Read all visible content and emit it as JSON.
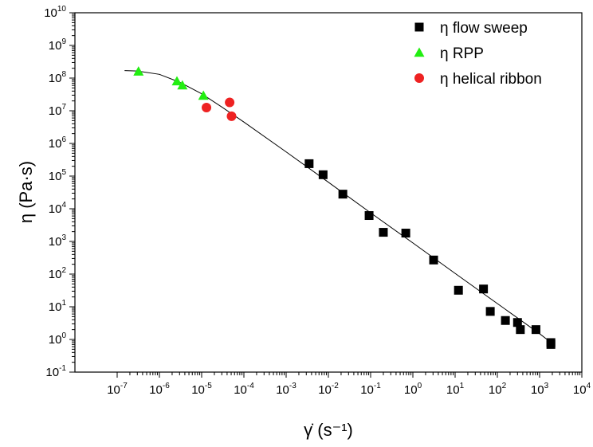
{
  "chart_data": {
    "type": "scatter",
    "xlabel": "γ̇ (s⁻¹)",
    "ylabel": "η (Pa·s)",
    "x_scale": "log",
    "y_scale": "log",
    "xlim": [
      1e-08,
      10000.0
    ],
    "ylim": [
      0.1,
      10000000000.0
    ],
    "x_ticks": [
      {
        "base": "10",
        "exp": "-7",
        "value": 1e-07
      },
      {
        "base": "10",
        "exp": "-6",
        "value": 1e-06
      },
      {
        "base": "10",
        "exp": "-5",
        "value": 1e-05
      },
      {
        "base": "10",
        "exp": "-4",
        "value": 0.0001
      },
      {
        "base": "10",
        "exp": "-3",
        "value": 0.001
      },
      {
        "base": "10",
        "exp": "-2",
        "value": 0.01
      },
      {
        "base": "10",
        "exp": "-1",
        "value": 0.1
      },
      {
        "base": "10",
        "exp": "0",
        "value": 1
      },
      {
        "base": "10",
        "exp": "1",
        "value": 10
      },
      {
        "base": "10",
        "exp": "2",
        "value": 100
      },
      {
        "base": "10",
        "exp": "3",
        "value": 1000
      },
      {
        "base": "10",
        "exp": "4",
        "value": 10000
      }
    ],
    "y_ticks": [
      {
        "base": "10",
        "exp": "-1",
        "value": 0.1
      },
      {
        "base": "10",
        "exp": "0",
        "value": 1
      },
      {
        "base": "10",
        "exp": "1",
        "value": 10
      },
      {
        "base": "10",
        "exp": "2",
        "value": 100
      },
      {
        "base": "10",
        "exp": "3",
        "value": 1000
      },
      {
        "base": "10",
        "exp": "4",
        "value": 10000
      },
      {
        "base": "10",
        "exp": "5",
        "value": 100000
      },
      {
        "base": "10",
        "exp": "6",
        "value": 1000000
      },
      {
        "base": "10",
        "exp": "7",
        "value": 10000000
      },
      {
        "base": "10",
        "exp": "8",
        "value": 100000000
      },
      {
        "base": "10",
        "exp": "9",
        "value": 1000000000
      },
      {
        "base": "10",
        "exp": "10",
        "value": 10000000000
      }
    ],
    "grid": false,
    "legend_position": "top-right",
    "series": [
      {
        "name": "η flow sweep",
        "marker": "square",
        "color": "#000000",
        "points": [
          {
            "x": 0.0035,
            "y": 240000
          },
          {
            "x": 0.0075,
            "y": 110000
          },
          {
            "x": 0.022,
            "y": 28000
          },
          {
            "x": 0.092,
            "y": 6200
          },
          {
            "x": 0.2,
            "y": 1900
          },
          {
            "x": 0.68,
            "y": 1800
          },
          {
            "x": 3.1,
            "y": 270
          },
          {
            "x": 12,
            "y": 32
          },
          {
            "x": 47,
            "y": 35
          },
          {
            "x": 68,
            "y": 7.2
          },
          {
            "x": 155,
            "y": 3.8
          },
          {
            "x": 300,
            "y": 3.3
          },
          {
            "x": 350,
            "y": 2.0
          },
          {
            "x": 820,
            "y": 2.0
          },
          {
            "x": 1850,
            "y": 0.8
          },
          {
            "x": 1850,
            "y": 0.7
          }
        ]
      },
      {
        "name": "η RPP",
        "marker": "triangle",
        "color": "#22ee11",
        "points": [
          {
            "x": 3.2e-07,
            "y": 160000000.0
          },
          {
            "x": 2.6e-06,
            "y": 80000000.0
          },
          {
            "x": 3.5e-06,
            "y": 60000000.0
          },
          {
            "x": 1.1e-05,
            "y": 29000000.0
          }
        ]
      },
      {
        "name": "η helical ribbon",
        "marker": "circle",
        "color": "#ee2222",
        "points": [
          {
            "x": 1.3e-05,
            "y": 12500000.0
          },
          {
            "x": 4.6e-05,
            "y": 18000000.0
          },
          {
            "x": 5.1e-05,
            "y": 6800000.0
          }
        ]
      }
    ],
    "fit_line": {
      "color": "#000000",
      "points": [
        {
          "x": 1.5e-07,
          "y": 170000000.0
        },
        {
          "x": 3e-07,
          "y": 165000000.0
        },
        {
          "x": 1e-06,
          "y": 130000000.0
        },
        {
          "x": 3e-06,
          "y": 75000000.0
        },
        {
          "x": 1e-05,
          "y": 33000000.0
        },
        {
          "x": 3e-05,
          "y": 13000000.0
        },
        {
          "x": 0.0001,
          "y": 4500000.0
        },
        {
          "x": 0.001,
          "y": 550000.0
        },
        {
          "x": 0.01,
          "y": 65000.0
        },
        {
          "x": 0.1,
          "y": 7500.0
        },
        {
          "x": 1,
          "y": 900
        },
        {
          "x": 10,
          "y": 105
        },
        {
          "x": 100,
          "y": 12.5
        },
        {
          "x": 1000,
          "y": 1.5
        },
        {
          "x": 2000,
          "y": 0.75
        }
      ]
    }
  }
}
